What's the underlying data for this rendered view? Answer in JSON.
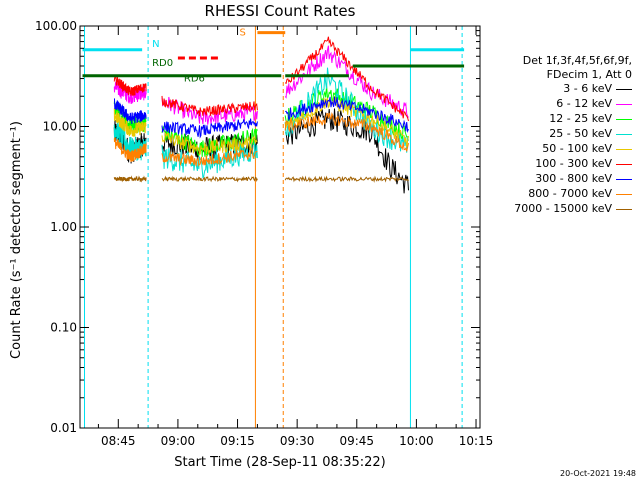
{
  "chart_data": {
    "type": "line",
    "title": "RHESSI Count Rates",
    "xlabel": "Start Time (28-Sep-11 08:35:22)",
    "ylabel": "Count Rate (s⁻¹ detector segment⁻¹)",
    "y_scale": "log",
    "ylim": [
      0.01,
      100.0
    ],
    "y_ticks": [
      "0.01",
      "0.10",
      "1.00",
      "10.00",
      "100.00"
    ],
    "x_ticks": [
      "08:45",
      "09:00",
      "09:15",
      "09:30",
      "09:45",
      "10:00",
      "10:15"
    ],
    "xlim": [
      "08:35:22",
      "10:16:00"
    ],
    "legend_header": [
      "Det 1f,3f,4f,5f,6f,9f,",
      "FDecim 1, Att 0"
    ],
    "series": [
      {
        "name": "3 - 6 keV",
        "color": "#000000"
      },
      {
        "name": "6 - 12 keV",
        "color": "#ff00ff"
      },
      {
        "name": "12 - 25 keV",
        "color": "#00ff00"
      },
      {
        "name": "25 - 50 keV",
        "color": "#00e0d0"
      },
      {
        "name": "50 - 100 keV",
        "color": "#e8c800"
      },
      {
        "name": "100 - 300 keV",
        "color": "#ff0000"
      },
      {
        "name": "300 - 800 keV",
        "color": "#0000ff"
      },
      {
        "name": "800 - 7000 keV",
        "color": "#ff8000"
      },
      {
        "name": "7000 - 15000 keV",
        "color": "#a06000"
      }
    ],
    "annotations": [
      {
        "label": "N",
        "color": "#00e0f0"
      },
      {
        "label": "RD0",
        "color": "#006400"
      },
      {
        "label": "RD6",
        "color": "#006400"
      },
      {
        "label": "S",
        "color": "#ff8000"
      }
    ],
    "footer": "20-Oct-2021 19:48"
  }
}
